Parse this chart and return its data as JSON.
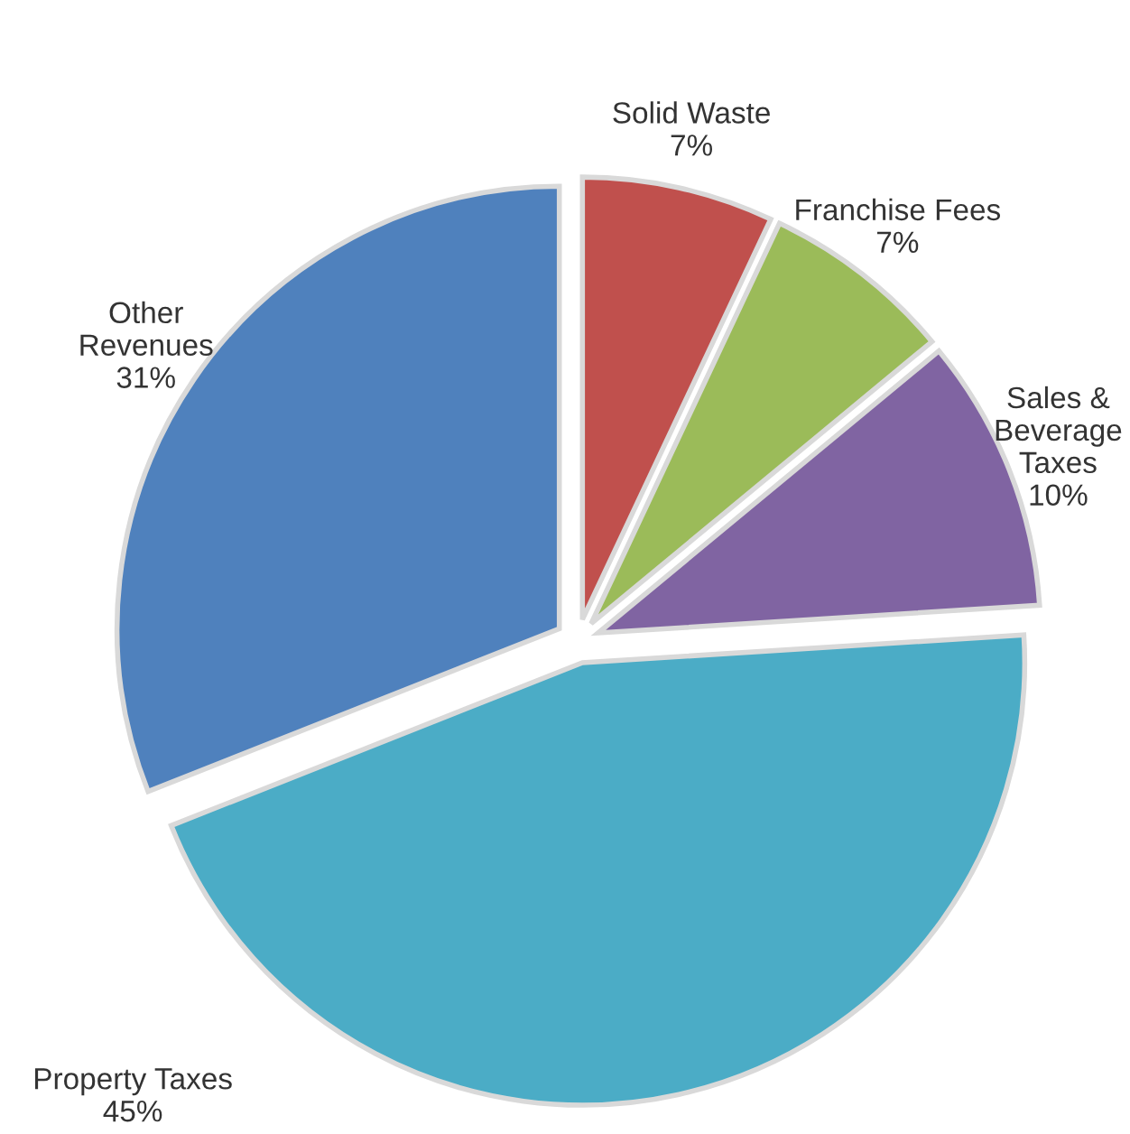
{
  "chart_data": {
    "type": "pie",
    "categories": [
      "Solid Waste",
      "Franchise Fees",
      "Sales &\nBeverage\nTaxes",
      "Property Taxes",
      "Other\nRevenues"
    ],
    "values": [
      7,
      7,
      10,
      45,
      31
    ],
    "value_labels": [
      "7%",
      "7%",
      "10%",
      "45%",
      "31%"
    ],
    "colors": [
      "#c0504d",
      "#9bbb59",
      "#8064a2",
      "#4bacc6",
      "#4f81bd"
    ],
    "legend": false
  }
}
